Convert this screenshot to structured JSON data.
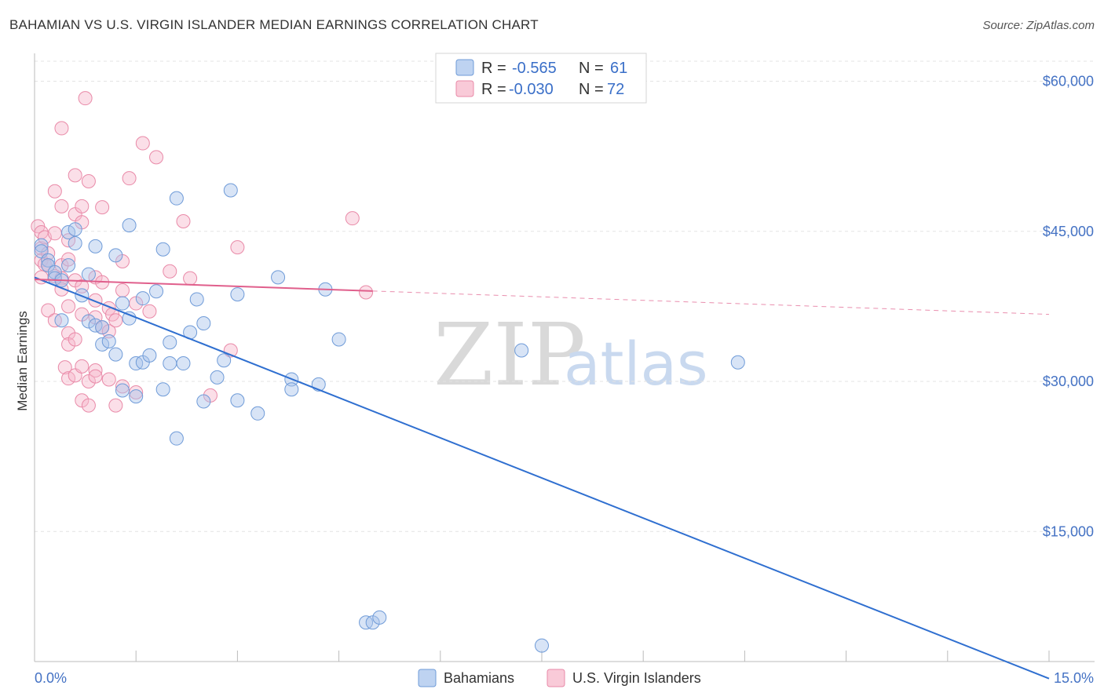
{
  "header": {
    "title": "BAHAMIAN VS U.S. VIRGIN ISLANDER MEDIAN EARNINGS CORRELATION CHART",
    "source": "Source: ZipAtlas.com"
  },
  "watermark": {
    "zip": "ZIP",
    "atlas": "atlas"
  },
  "legend": {
    "r_label": "R =",
    "n_label": "N =",
    "rows": [
      {
        "r": "-0.565",
        "n": "61"
      },
      {
        "r": "-0.030",
        "n": "72"
      }
    ]
  },
  "bottom_legend": [
    "Bahamians",
    "U.S. Virgin Islanders"
  ],
  "chart_data": {
    "type": "scatter",
    "title": "BAHAMIAN VS U.S. VIRGIN ISLANDER MEDIAN EARNINGS CORRELATION CHART",
    "xlabel": "",
    "ylabel": "Median Earnings",
    "xlim": [
      0,
      15
    ],
    "ylim": [
      2000,
      62000
    ],
    "x_tick_labels": [
      "0.0%",
      "15.0%"
    ],
    "y_ticks": [
      15000,
      30000,
      45000,
      60000
    ],
    "y_tick_labels": [
      "$15,000",
      "$30,000",
      "$45,000",
      "$60,000"
    ],
    "colors": {
      "bahamians_fill": "#a8c4ec",
      "bahamians_stroke": "#6f9bd8",
      "bahamians_line": "#2f6fd0",
      "usvi_fill": "#f7b8cb",
      "usvi_stroke": "#e98aa8",
      "usvi_line": "#e05f8c"
    },
    "series": [
      {
        "name": "Bahamians",
        "points": [
          [
            0.1,
            43.6
          ],
          [
            0.1,
            43.0
          ],
          [
            0.2,
            42.1
          ],
          [
            0.2,
            41.6
          ],
          [
            0.3,
            40.9
          ],
          [
            0.3,
            40.3
          ],
          [
            0.4,
            40.1
          ],
          [
            0.4,
            36.1
          ],
          [
            0.5,
            41.6
          ],
          [
            0.5,
            44.9
          ],
          [
            0.6,
            45.2
          ],
          [
            0.6,
            43.8
          ],
          [
            0.7,
            38.6
          ],
          [
            0.8,
            40.7
          ],
          [
            0.8,
            36.0
          ],
          [
            0.9,
            43.5
          ],
          [
            0.9,
            35.6
          ],
          [
            1.0,
            35.4
          ],
          [
            1.0,
            33.7
          ],
          [
            1.1,
            34.0
          ],
          [
            1.2,
            42.6
          ],
          [
            1.2,
            32.7
          ],
          [
            1.3,
            29.1
          ],
          [
            1.3,
            37.8
          ],
          [
            1.4,
            36.3
          ],
          [
            1.4,
            45.6
          ],
          [
            1.5,
            28.5
          ],
          [
            1.5,
            31.8
          ],
          [
            1.6,
            31.9
          ],
          [
            1.6,
            38.3
          ],
          [
            1.7,
            32.6
          ],
          [
            1.8,
            39.0
          ],
          [
            1.9,
            43.2
          ],
          [
            1.9,
            29.2
          ],
          [
            2.0,
            31.8
          ],
          [
            2.0,
            33.9
          ],
          [
            2.1,
            48.3
          ],
          [
            2.1,
            24.3
          ],
          [
            2.2,
            31.8
          ],
          [
            2.3,
            34.9
          ],
          [
            2.4,
            38.2
          ],
          [
            2.5,
            35.8
          ],
          [
            2.5,
            28.0
          ],
          [
            2.7,
            30.4
          ],
          [
            2.8,
            32.1
          ],
          [
            2.9,
            49.1
          ],
          [
            3.0,
            38.7
          ],
          [
            3.0,
            28.1
          ],
          [
            3.3,
            26.8
          ],
          [
            3.6,
            40.4
          ],
          [
            3.8,
            30.2
          ],
          [
            3.8,
            29.2
          ],
          [
            4.2,
            29.7
          ],
          [
            4.3,
            39.2
          ],
          [
            4.5,
            34.2
          ],
          [
            4.9,
            5.9
          ],
          [
            5.0,
            5.9
          ],
          [
            5.1,
            6.4
          ],
          [
            7.2,
            33.1
          ],
          [
            7.5,
            3.6
          ],
          [
            10.4,
            31.9
          ]
        ]
      },
      {
        "name": "U.S. Virgin Islanders",
        "points": [
          [
            0.05,
            45.5
          ],
          [
            0.1,
            44.9
          ],
          [
            0.1,
            43.3
          ],
          [
            0.1,
            42.1
          ],
          [
            0.1,
            40.4
          ],
          [
            0.15,
            44.4
          ],
          [
            0.15,
            41.7
          ],
          [
            0.2,
            37.1
          ],
          [
            0.2,
            42.8
          ],
          [
            0.2,
            41.6
          ],
          [
            0.3,
            44.8
          ],
          [
            0.3,
            40.5
          ],
          [
            0.3,
            36.1
          ],
          [
            0.3,
            49.0
          ],
          [
            0.4,
            40.3
          ],
          [
            0.4,
            39.2
          ],
          [
            0.4,
            47.5
          ],
          [
            0.4,
            55.3
          ],
          [
            0.4,
            41.6
          ],
          [
            0.45,
            31.4
          ],
          [
            0.5,
            34.8
          ],
          [
            0.5,
            33.7
          ],
          [
            0.5,
            30.3
          ],
          [
            0.5,
            37.5
          ],
          [
            0.5,
            44.1
          ],
          [
            0.5,
            42.2
          ],
          [
            0.6,
            50.6
          ],
          [
            0.6,
            40.1
          ],
          [
            0.6,
            34.2
          ],
          [
            0.6,
            30.6
          ],
          [
            0.6,
            46.7
          ],
          [
            0.7,
            39.5
          ],
          [
            0.7,
            31.5
          ],
          [
            0.7,
            28.1
          ],
          [
            0.7,
            36.7
          ],
          [
            0.7,
            45.9
          ],
          [
            0.7,
            47.5
          ],
          [
            0.75,
            58.3
          ],
          [
            0.8,
            30.0
          ],
          [
            0.8,
            27.6
          ],
          [
            0.8,
            50.0
          ],
          [
            0.9,
            40.4
          ],
          [
            0.9,
            38.1
          ],
          [
            0.9,
            36.4
          ],
          [
            0.9,
            31.1
          ],
          [
            0.9,
            30.5
          ],
          [
            1.0,
            35.4
          ],
          [
            1.0,
            47.4
          ],
          [
            1.0,
            39.9
          ],
          [
            1.1,
            35.0
          ],
          [
            1.1,
            37.3
          ],
          [
            1.1,
            30.2
          ],
          [
            1.15,
            36.7
          ],
          [
            1.2,
            36.1
          ],
          [
            1.2,
            27.6
          ],
          [
            1.3,
            29.5
          ],
          [
            1.3,
            42.0
          ],
          [
            1.3,
            39.1
          ],
          [
            1.4,
            50.3
          ],
          [
            1.5,
            37.8
          ],
          [
            1.5,
            28.9
          ],
          [
            1.6,
            53.8
          ],
          [
            1.7,
            37.0
          ],
          [
            1.8,
            52.4
          ],
          [
            2.0,
            41.0
          ],
          [
            2.2,
            46.0
          ],
          [
            2.3,
            40.3
          ],
          [
            2.6,
            28.6
          ],
          [
            2.9,
            33.1
          ],
          [
            3.0,
            43.4
          ],
          [
            4.7,
            46.3
          ],
          [
            4.9,
            38.9
          ]
        ]
      }
    ],
    "trend_lines": [
      {
        "series": "Bahamians",
        "x": [
          0.0,
          15.0
        ],
        "y": [
          40.4,
          0.3
        ]
      },
      {
        "series": "U.S. Virgin Islanders",
        "x": [
          0.0,
          15.0
        ],
        "y": [
          40.2,
          36.7
        ],
        "solid_until_x": 5.0
      }
    ]
  }
}
